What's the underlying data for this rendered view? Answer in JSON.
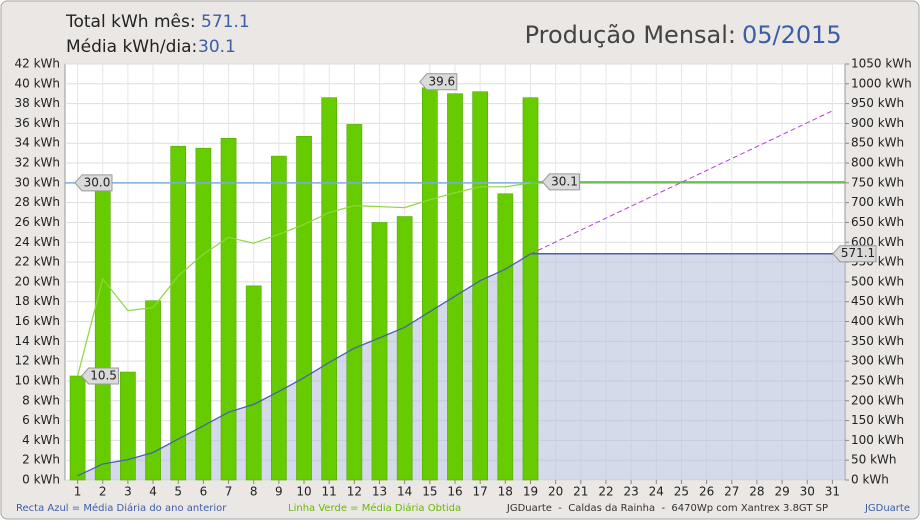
{
  "chart_data": {
    "type": "bar",
    "header": {
      "total_label": "Total kWh mês:",
      "total_value": "571.1",
      "avg_label": "Média kWh/dia:",
      "avg_value": "30.1",
      "title": "Produção Mensal:",
      "period": "05/2015"
    },
    "x": [
      1,
      2,
      3,
      4,
      5,
      6,
      7,
      8,
      9,
      10,
      11,
      12,
      13,
      14,
      15,
      16,
      17,
      18,
      19,
      20,
      21,
      22,
      23,
      24,
      25,
      26,
      27,
      28,
      29,
      30,
      31
    ],
    "xlim": [
      0.5,
      31.5
    ],
    "xticks": [
      1,
      2,
      3,
      4,
      5,
      6,
      7,
      8,
      9,
      10,
      11,
      12,
      13,
      14,
      15,
      16,
      17,
      18,
      19,
      20,
      21,
      22,
      23,
      24,
      25,
      26,
      27,
      28,
      29,
      30,
      31
    ],
    "ylim": [
      0,
      42
    ],
    "yticks": [
      {
        "value": 0,
        "label": "0 kWh"
      },
      {
        "value": 2,
        "label": "2 kWh"
      },
      {
        "value": 4,
        "label": "4 kWh"
      },
      {
        "value": 6,
        "label": "6 kWh"
      },
      {
        "value": 8,
        "label": "8 kWh"
      },
      {
        "value": 10,
        "label": "10 kWh"
      },
      {
        "value": 12,
        "label": "12 kWh"
      },
      {
        "value": 14,
        "label": "14 kWh"
      },
      {
        "value": 16,
        "label": "16 kWh"
      },
      {
        "value": 18,
        "label": "18 kWh"
      },
      {
        "value": 20,
        "label": "20 kWh"
      },
      {
        "value": 22,
        "label": "22 kWh"
      },
      {
        "value": 24,
        "label": "24 kWh"
      },
      {
        "value": 26,
        "label": "26 kWh"
      },
      {
        "value": 28,
        "label": "28 kWh"
      },
      {
        "value": 30,
        "label": "30 kWh"
      },
      {
        "value": 32,
        "label": "32 kWh"
      },
      {
        "value": 34,
        "label": "34 kWh"
      },
      {
        "value": 36,
        "label": "36 kWh"
      },
      {
        "value": 38,
        "label": "38 kWh"
      },
      {
        "value": 40,
        "label": "40 kWh"
      },
      {
        "value": 42,
        "label": "42 kWh"
      }
    ],
    "y2lim": [
      0,
      1050
    ],
    "y2ticks": [
      {
        "value": 0,
        "label": "0 kWh"
      },
      {
        "value": 50,
        "label": "50 kWh"
      },
      {
        "value": 100,
        "label": "100 kWh"
      },
      {
        "value": 150,
        "label": "150 kWh"
      },
      {
        "value": 200,
        "label": "200 kWh"
      },
      {
        "value": 250,
        "label": "250 kWh"
      },
      {
        "value": 300,
        "label": "300 kWh"
      },
      {
        "value": 350,
        "label": "350 kWh"
      },
      {
        "value": 400,
        "label": "400 kWh"
      },
      {
        "value": 450,
        "label": "450 kWh"
      },
      {
        "value": 500,
        "label": "500 kWh"
      },
      {
        "value": 550,
        "label": "550 kWh"
      },
      {
        "value": 600,
        "label": "600 kWh"
      },
      {
        "value": 650,
        "label": "650 kWh"
      },
      {
        "value": 700,
        "label": "700 kWh"
      },
      {
        "value": 750,
        "label": "750 kWh"
      },
      {
        "value": 800,
        "label": "800 kWh"
      },
      {
        "value": 850,
        "label": "850 kWh"
      },
      {
        "value": 900,
        "label": "900 kWh"
      },
      {
        "value": 950,
        "label": "950 kWh"
      },
      {
        "value": 1000,
        "label": "1000 kWh"
      },
      {
        "value": 1050,
        "label": "1050 kWh"
      }
    ],
    "grid": true,
    "bars": {
      "color": "#66cc00",
      "values": [
        10.5,
        30.0,
        10.9,
        18.1,
        33.7,
        33.5,
        34.5,
        19.6,
        32.7,
        34.7,
        38.6,
        35.9,
        26.0,
        26.6,
        39.6,
        39.0,
        39.2,
        28.9,
        38.6
      ]
    },
    "cumulative": {
      "color": "#4a5fb0",
      "fill": "#b8c2da",
      "axis": "y2",
      "values": [
        10.5,
        40.5,
        51.4,
        69.5,
        103.2,
        136.7,
        171.2,
        190.8,
        223.5,
        258.2,
        296.8,
        332.7,
        358.7,
        385.3,
        424.9,
        463.9,
        503.1,
        532.0,
        570.6
      ]
    },
    "daily_average": {
      "color": "#8fd640",
      "values": [
        10.5,
        20.3,
        17.1,
        17.4,
        20.6,
        22.8,
        24.5,
        23.9,
        24.8,
        25.8,
        27.0,
        27.7,
        27.6,
        27.5,
        28.3,
        29.0,
        29.6,
        29.6,
        30.0
      ]
    },
    "projection": {
      "color": "#b040e0",
      "axis": "y2",
      "x": [
        19,
        31
      ],
      "values": [
        570.6,
        931.8
      ]
    },
    "reference_lines": [
      {
        "value": 30.0,
        "label": "30.0",
        "color": "#7aaee0",
        "axis": "y",
        "span": "full"
      },
      {
        "value": 30.1,
        "label": "30.1",
        "color": "#66cc00",
        "axis": "y",
        "span": "after"
      },
      {
        "value": 571.1,
        "label": "571.1",
        "color": "#4a5fb0",
        "axis": "y2",
        "span": "after"
      }
    ],
    "point_labels": [
      {
        "x": 1,
        "value": 10.5,
        "label": "10.5"
      },
      {
        "x": 15,
        "value": 39.6,
        "label": "39.6"
      }
    ],
    "footer": {
      "blue_note": "Recta Azul = Média Diária do ano anterior",
      "green_note": "Linha Verde = Média Diária Obtida",
      "credit": "JGDuarte  -  Caldas da Rainha  -  6470Wp com Xantrex 3.8GT SP",
      "author": "JGDuarte"
    }
  }
}
